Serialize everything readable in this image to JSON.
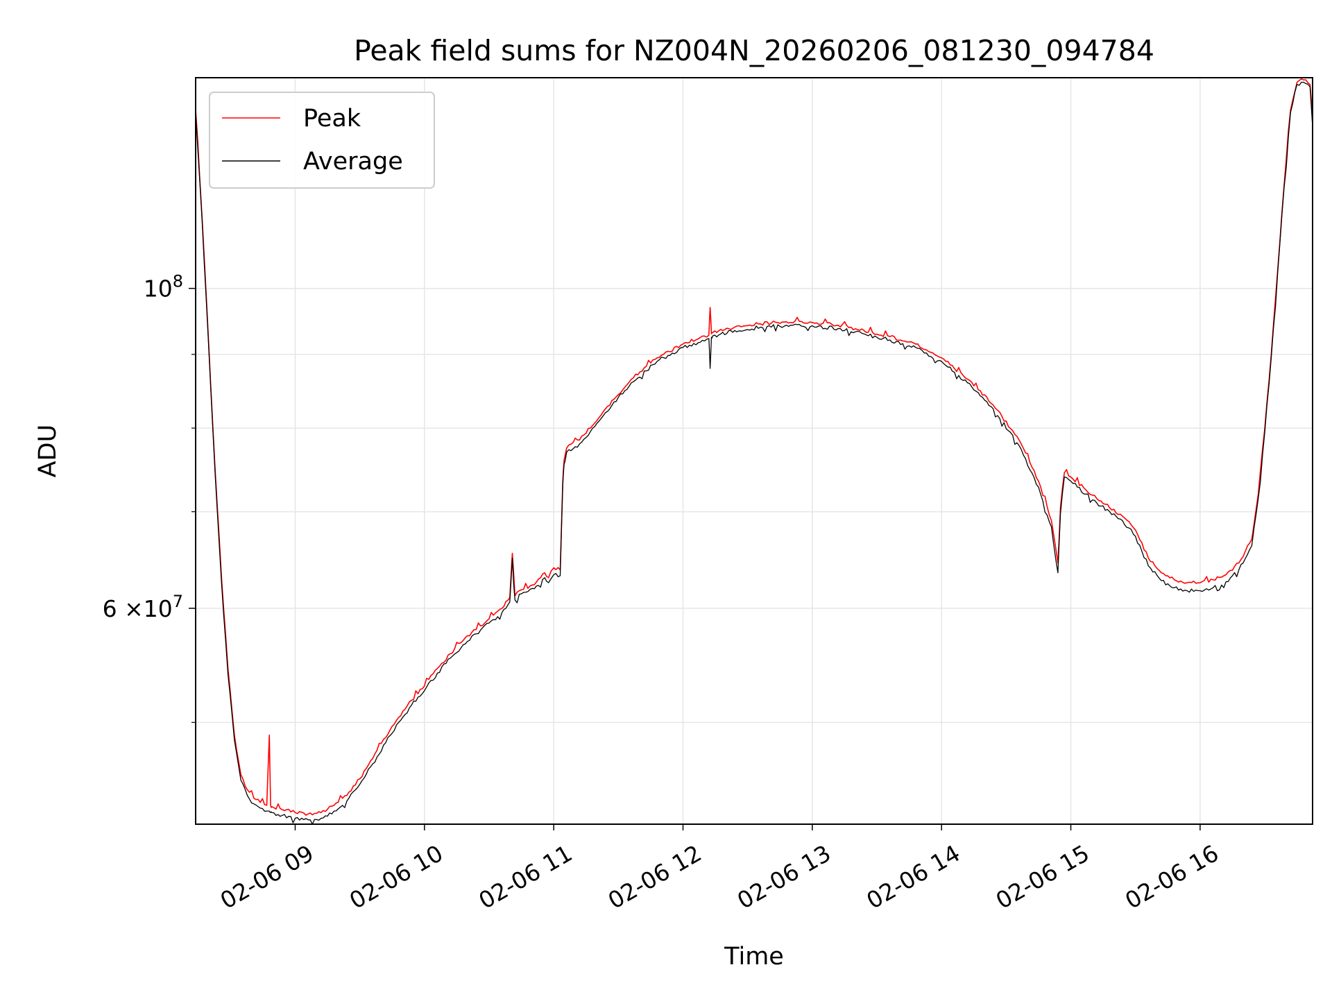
{
  "chart_data": {
    "type": "line",
    "title": "Peak field sums for NZ004N_20260206_081230_094784",
    "xlabel": "Time",
    "ylabel": "ADU",
    "y_scale": "log",
    "x_unit": "hour of 2026-02-06",
    "xlim": [
      8.23,
      16.87
    ],
    "ylim": [
      42500000,
      140000000
    ],
    "grid": true,
    "legend": {
      "position": "upper-left",
      "entries": [
        "Peak",
        "Average"
      ]
    },
    "x_ticks": [
      {
        "value": 9,
        "label": "02-06 09"
      },
      {
        "value": 10,
        "label": "02-06 10"
      },
      {
        "value": 11,
        "label": "02-06 11"
      },
      {
        "value": 12,
        "label": "02-06 12"
      },
      {
        "value": 13,
        "label": "02-06 13"
      },
      {
        "value": 14,
        "label": "02-06 14"
      },
      {
        "value": 15,
        "label": "02-06 15"
      },
      {
        "value": 16,
        "label": "02-06 16"
      }
    ],
    "y_major_ticks": [
      {
        "value": 60000000,
        "mantissa": "6",
        "times": "×",
        "base": "10",
        "exp": "7"
      },
      {
        "value": 100000000,
        "mantissa": "",
        "times": "",
        "base": "10",
        "exp": "8"
      }
    ],
    "y_minor_ticks": [
      50000000,
      70000000,
      80000000,
      90000000
    ],
    "colors": {
      "Peak": "#ff0000",
      "Average": "#000000",
      "grid": "#e6e6e6"
    },
    "series": [
      {
        "name": "Peak",
        "color": "#ff0000",
        "x": [
          8.23,
          8.28,
          8.33,
          8.38,
          8.43,
          8.48,
          8.53,
          8.58,
          8.63,
          8.68,
          8.73,
          8.78,
          8.8,
          8.81,
          8.82,
          8.9,
          9.0,
          9.1,
          9.2,
          9.3,
          9.4,
          9.5,
          9.6,
          9.7,
          9.8,
          9.9,
          10.0,
          10.1,
          10.2,
          10.3,
          10.4,
          10.5,
          10.6,
          10.66,
          10.68,
          10.7,
          10.75,
          10.85,
          10.93,
          10.96,
          11.0,
          11.05,
          11.07,
          11.08,
          11.1,
          11.2,
          11.4,
          11.6,
          11.8,
          12.0,
          12.2,
          12.21,
          12.22,
          12.23,
          12.4,
          12.6,
          12.8,
          13.0,
          13.2,
          13.4,
          13.6,
          13.8,
          14.0,
          14.2,
          14.4,
          14.6,
          14.75,
          14.85,
          14.9,
          14.92,
          14.95,
          15.0,
          15.2,
          15.4,
          15.5,
          15.6,
          15.7,
          15.8,
          15.9,
          16.0,
          16.1,
          16.2,
          16.3,
          16.4,
          16.45,
          16.5,
          16.55,
          16.6,
          16.65,
          16.7,
          16.75,
          16.8,
          16.85,
          16.87
        ],
        "y": [
          133000000,
          112000000,
          92000000,
          75000000,
          63000000,
          54500000,
          49000000,
          46000000,
          44900000,
          44300000,
          44000000,
          43800000,
          49000000,
          43800000,
          43700000,
          43500000,
          43300000,
          43200000,
          43300000,
          43800000,
          44500000,
          45700000,
          47200000,
          48800000,
          50400000,
          51800000,
          53000000,
          54500000,
          55800000,
          57000000,
          58000000,
          59000000,
          60000000,
          61000000,
          65500000,
          61200000,
          61800000,
          62300000,
          63500000,
          63000000,
          64000000,
          63800000,
          73500000,
          76000000,
          77500000,
          78500000,
          82500000,
          86500000,
          89500000,
          91500000,
          92800000,
          97000000,
          93000000,
          93200000,
          94000000,
          94500000,
          94800000,
          94700000,
          94300000,
          93500000,
          92600000,
          91500000,
          89500000,
          86500000,
          83000000,
          78500000,
          73500000,
          69000000,
          64500000,
          70500000,
          74500000,
          74000000,
          71500000,
          69500000,
          68000000,
          65000000,
          63500000,
          62800000,
          62500000,
          62500000,
          62800000,
          63300000,
          64500000,
          67000000,
          72000000,
          80000000,
          90000000,
          103000000,
          118000000,
          133000000,
          139000000,
          139500000,
          138500000,
          130000000
        ]
      },
      {
        "name": "Average",
        "color": "#000000",
        "x": [
          8.23,
          8.28,
          8.33,
          8.38,
          8.43,
          8.48,
          8.53,
          8.58,
          8.63,
          8.68,
          8.73,
          8.78,
          8.8,
          8.81,
          8.82,
          8.9,
          9.0,
          9.1,
          9.2,
          9.3,
          9.4,
          9.5,
          9.6,
          9.7,
          9.8,
          9.9,
          10.0,
          10.1,
          10.2,
          10.3,
          10.4,
          10.5,
          10.6,
          10.66,
          10.68,
          10.7,
          10.75,
          10.85,
          10.93,
          10.96,
          11.0,
          11.05,
          11.07,
          11.08,
          11.1,
          11.2,
          11.4,
          11.6,
          11.8,
          12.0,
          12.2,
          12.21,
          12.22,
          12.23,
          12.4,
          12.6,
          12.8,
          13.0,
          13.2,
          13.4,
          13.6,
          13.8,
          14.0,
          14.2,
          14.4,
          14.6,
          14.75,
          14.85,
          14.9,
          14.92,
          14.95,
          15.0,
          15.2,
          15.4,
          15.5,
          15.6,
          15.7,
          15.8,
          15.9,
          16.0,
          16.1,
          16.2,
          16.3,
          16.4,
          16.45,
          16.5,
          16.55,
          16.6,
          16.65,
          16.7,
          16.75,
          16.8,
          16.85,
          16.87
        ],
        "y": [
          132500000,
          111500000,
          91500000,
          74500000,
          62500000,
          54000000,
          48600000,
          45600000,
          44500000,
          43900000,
          43600000,
          43400000,
          43400000,
          43300000,
          43300000,
          43100000,
          42900000,
          42800000,
          42900000,
          43400000,
          44100000,
          45300000,
          46800000,
          48400000,
          50000000,
          51400000,
          52600000,
          54100000,
          55400000,
          56600000,
          57600000,
          58600000,
          59600000,
          60600000,
          65000000,
          60800000,
          61400000,
          61900000,
          63000000,
          62500000,
          63300000,
          63200000,
          73000000,
          75500000,
          77000000,
          78000000,
          82000000,
          86000000,
          89000000,
          91000000,
          92300000,
          88000000,
          92500000,
          92700000,
          93500000,
          94000000,
          94300000,
          94200000,
          93800000,
          93000000,
          92100000,
          91000000,
          89000000,
          86000000,
          82500000,
          77800000,
          72800000,
          68300000,
          63500000,
          69800000,
          74000000,
          73500000,
          71000000,
          69000000,
          67300000,
          64200000,
          62700000,
          62000000,
          61700000,
          61700000,
          62000000,
          62600000,
          63800000,
          66300000,
          71500000,
          79500000,
          89500000,
          102500000,
          117500000,
          132500000,
          138500000,
          139000000,
          138000000,
          129500000
        ]
      }
    ]
  }
}
